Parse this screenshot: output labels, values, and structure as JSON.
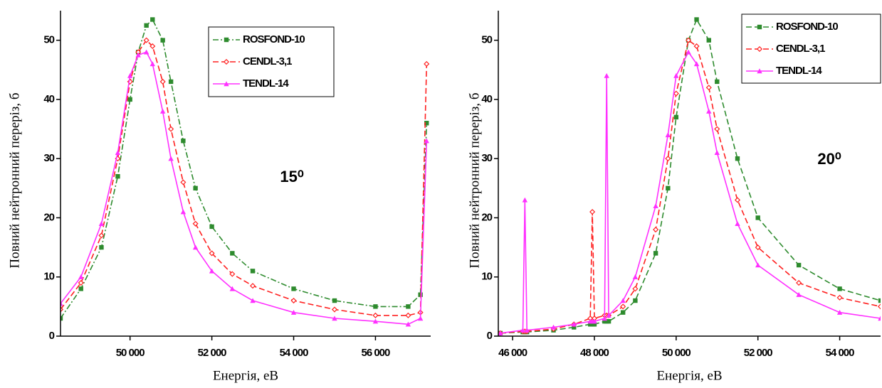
{
  "chart_data": [
    {
      "type": "line",
      "annotation": "15⁰",
      "x_label": "Енергія, еВ",
      "y_label": "Повний нейтронний переріз, б",
      "x": [
        48300,
        48800,
        49300,
        49700,
        50000,
        50200,
        50400,
        50550,
        50800,
        51000,
        51300,
        51600,
        52000,
        52500,
        53000,
        54000,
        55000,
        56000,
        56800,
        57100,
        57250
      ],
      "series": [
        {
          "name": "ROSFOND-10",
          "color": "#2e8b2e",
          "marker": "square",
          "linestyle": "dashdot",
          "values": [
            3,
            8,
            15,
            27,
            40,
            48,
            52.5,
            53.5,
            50,
            43,
            33,
            25,
            18.5,
            14,
            11,
            8,
            6,
            5,
            5,
            7,
            36
          ]
        },
        {
          "name": "CENDL-3,1",
          "color": "#ff2020",
          "marker": "diamond",
          "linestyle": "dashed",
          "values": [
            4.5,
            9,
            17,
            30,
            43,
            48,
            50,
            49,
            43,
            35,
            26,
            19,
            14,
            10.5,
            8.5,
            6,
            4.5,
            3.5,
            3.5,
            4,
            46
          ]
        },
        {
          "name": "TENDL-14",
          "color": "#ff30ff",
          "marker": "triangle",
          "linestyle": "solid",
          "values": [
            5.5,
            10,
            19,
            31,
            44,
            47.5,
            48,
            46,
            38,
            30,
            21,
            15,
            11,
            8,
            6,
            4,
            3,
            2.5,
            2,
            3,
            33
          ]
        }
      ],
      "xlim": [
        48300,
        57350
      ],
      "xticks": [
        {
          "value": 50000,
          "label": "50 000"
        },
        {
          "value": 52000,
          "label": "52 000"
        },
        {
          "value": 54000,
          "label": "54 000"
        },
        {
          "value": 56000,
          "label": "56 000"
        }
      ],
      "ylim": [
        0,
        55
      ],
      "yticks": [
        0,
        10,
        20,
        30,
        40,
        50
      ],
      "legend": "upper right"
    },
    {
      "type": "line",
      "annotation": "20⁰",
      "x_label": "Енергія, еВ",
      "y_label": "Повний нейтронний переріз, б",
      "x": [
        45700,
        46250,
        46300,
        46350,
        47000,
        47500,
        47900,
        47950,
        48000,
        48250,
        48300,
        48350,
        48700,
        49000,
        49500,
        49800,
        50000,
        50300,
        50500,
        50800,
        51000,
        51500,
        52000,
        53000,
        54000,
        55000
      ],
      "series": [
        {
          "name": "ROSFOND-10",
          "color": "#2e8b2e",
          "marker": "square",
          "linestyle": "dashed",
          "values": [
            0.5,
            0.7,
            0.7,
            0.7,
            1,
            1.5,
            2,
            2,
            2,
            2.5,
            2.5,
            2.5,
            4,
            6,
            14,
            25,
            37,
            50,
            53.5,
            50,
            43,
            30,
            20,
            12,
            8,
            6
          ]
        },
        {
          "name": "CENDL-3,1",
          "color": "#ff2020",
          "marker": "diamond",
          "linestyle": "dashed",
          "values": [
            0.5,
            0.8,
            0.8,
            0.8,
            1.2,
            2,
            3,
            21,
            3,
            3.5,
            3.5,
            3.5,
            5,
            8,
            18,
            30,
            41,
            50,
            49,
            42,
            35,
            23,
            15,
            9,
            6.5,
            5
          ]
        },
        {
          "name": "TENDL-14",
          "color": "#ff30ff",
          "marker": "triangle",
          "linestyle": "solid",
          "values": [
            0.5,
            1,
            23,
            1,
            1.5,
            2,
            2.5,
            2.5,
            2.5,
            3,
            44,
            3.5,
            6,
            10,
            22,
            34,
            44,
            48,
            46,
            38,
            31,
            19,
            12,
            7,
            4,
            3
          ]
        }
      ],
      "xlim": [
        45650,
        55000
      ],
      "xticks": [
        {
          "value": 46000,
          "label": "46 000"
        },
        {
          "value": 48000,
          "label": "48 000"
        },
        {
          "value": 50000,
          "label": "50 000"
        },
        {
          "value": 52000,
          "label": "52 000"
        },
        {
          "value": 54000,
          "label": "54 000"
        }
      ],
      "ylim": [
        0,
        55
      ],
      "yticks": [
        0,
        10,
        20,
        30,
        40,
        50
      ],
      "legend": "upper right"
    }
  ]
}
